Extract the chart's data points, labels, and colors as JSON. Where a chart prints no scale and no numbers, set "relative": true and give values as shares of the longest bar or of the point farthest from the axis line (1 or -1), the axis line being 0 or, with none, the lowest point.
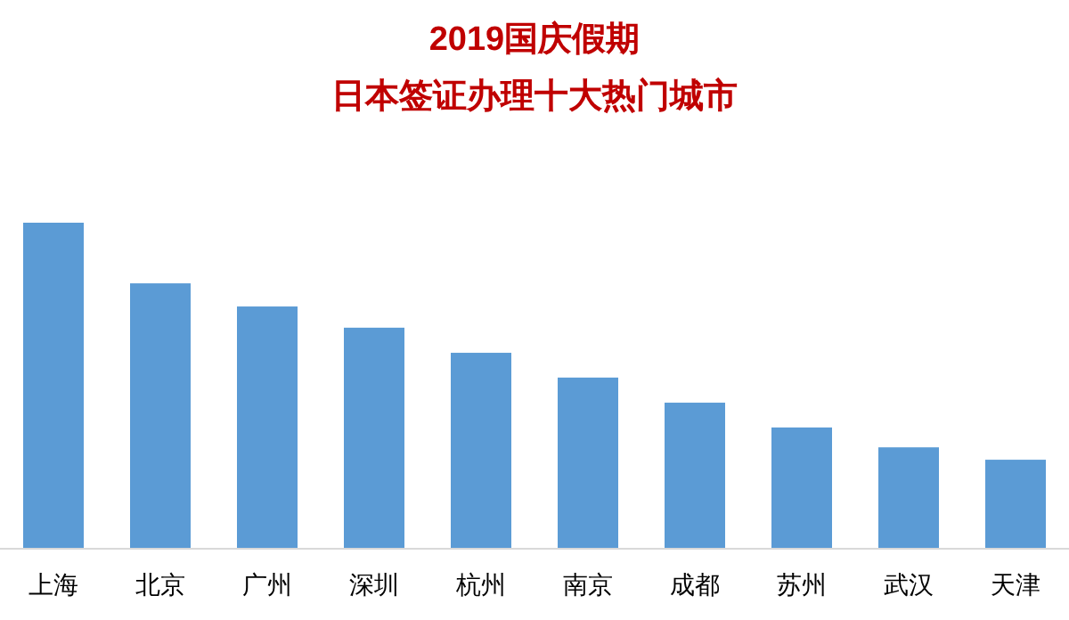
{
  "chart_data": {
    "type": "bar",
    "title": "2019国庆假期",
    "subtitle": "日本签证办理十大热门城市",
    "relative": true,
    "categories": [
      "上海",
      "北京",
      "广州",
      "深圳",
      "杭州",
      "南京",
      "成都",
      "苏州",
      "武汉",
      "天津"
    ],
    "values": [
      1,
      0.814,
      0.743,
      0.678,
      0.601,
      0.525,
      0.448,
      0.372,
      0.311,
      0.273
    ],
    "color": "#5b9bd5"
  }
}
